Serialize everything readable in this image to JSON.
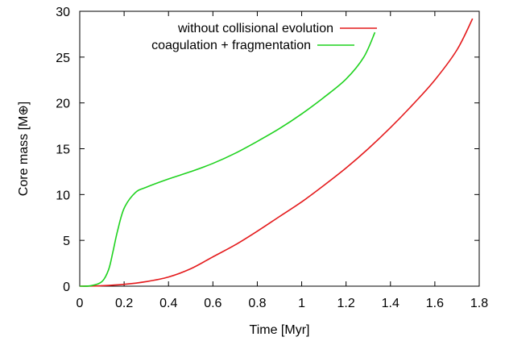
{
  "chart_data": {
    "type": "line",
    "title": "",
    "xlabel": "Time [Myr]",
    "ylabel": "Core mass [M⊕]",
    "xlim": [
      0,
      1.8
    ],
    "ylim": [
      0,
      30
    ],
    "xticks": [
      0,
      0.2,
      0.4,
      0.6,
      0.8,
      1,
      1.2,
      1.4,
      1.6,
      1.8
    ],
    "xtick_labels": [
      "0",
      "0.2",
      "0.4",
      "0.6",
      "0.8",
      "1",
      "1.2",
      "1.4",
      "1.6",
      "1.8"
    ],
    "yticks": [
      0,
      5,
      10,
      15,
      20,
      25,
      30
    ],
    "ytick_labels": [
      "0",
      "5",
      "10",
      "15",
      "20",
      "25",
      "30"
    ],
    "grid": false,
    "legend_position": "top-right",
    "series": [
      {
        "name": "without collisional evolution",
        "color": "#e41a1c",
        "points": [
          [
            0.0,
            0.0
          ],
          [
            0.1,
            0.05
          ],
          [
            0.2,
            0.2
          ],
          [
            0.3,
            0.5
          ],
          [
            0.4,
            1.0
          ],
          [
            0.5,
            1.9
          ],
          [
            0.6,
            3.2
          ],
          [
            0.7,
            4.5
          ],
          [
            0.8,
            6.0
          ],
          [
            0.9,
            7.6
          ],
          [
            1.0,
            9.2
          ],
          [
            1.1,
            11.0
          ],
          [
            1.2,
            12.9
          ],
          [
            1.3,
            15.0
          ],
          [
            1.4,
            17.3
          ],
          [
            1.5,
            19.8
          ],
          [
            1.6,
            22.5
          ],
          [
            1.7,
            25.8
          ],
          [
            1.77,
            29.2
          ]
        ]
      },
      {
        "name": "coagulation + fragmentation",
        "color": "#1fd21f",
        "points": [
          [
            0.0,
            0.0
          ],
          [
            0.05,
            0.05
          ],
          [
            0.1,
            0.5
          ],
          [
            0.13,
            1.8
          ],
          [
            0.15,
            3.8
          ],
          [
            0.17,
            6.0
          ],
          [
            0.2,
            8.5
          ],
          [
            0.25,
            10.2
          ],
          [
            0.3,
            10.8
          ],
          [
            0.4,
            11.7
          ],
          [
            0.5,
            12.5
          ],
          [
            0.6,
            13.4
          ],
          [
            0.7,
            14.5
          ],
          [
            0.8,
            15.8
          ],
          [
            0.9,
            17.2
          ],
          [
            1.0,
            18.8
          ],
          [
            1.1,
            20.6
          ],
          [
            1.2,
            22.6
          ],
          [
            1.28,
            25.0
          ],
          [
            1.33,
            27.7
          ]
        ]
      }
    ]
  }
}
